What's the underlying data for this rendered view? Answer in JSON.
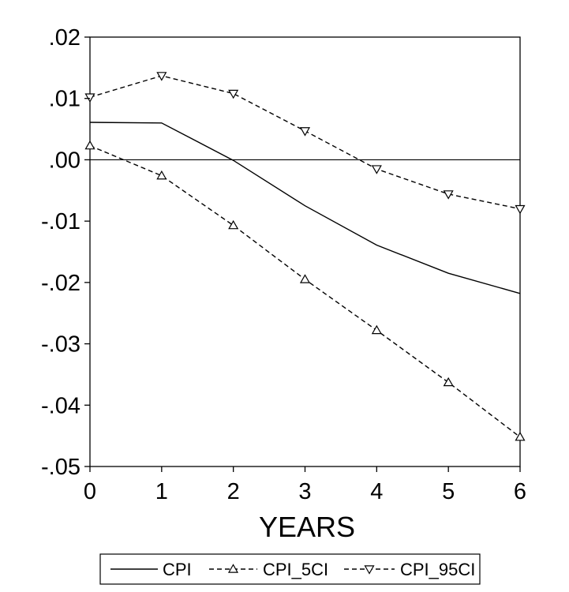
{
  "chart_data": {
    "type": "line",
    "title": "",
    "xlabel": "YEARS",
    "ylabel": "",
    "x": [
      0,
      1,
      2,
      3,
      4,
      5,
      6
    ],
    "xlim": [
      0,
      6
    ],
    "ylim": [
      -0.05,
      0.02
    ],
    "x_ticks": [
      0,
      1,
      2,
      3,
      4,
      5,
      6
    ],
    "x_tick_labels": [
      "0",
      "1",
      "2",
      "3",
      "4",
      "5",
      "6"
    ],
    "y_ticks": [
      0.02,
      0.01,
      0.0,
      -0.01,
      -0.02,
      -0.03,
      -0.04,
      -0.05
    ],
    "y_tick_labels": [
      ".02",
      ".01",
      ".00",
      "-.01",
      "-.02",
      "-.03",
      "-.04",
      "-.05"
    ],
    "zero_line": true,
    "grid": false,
    "legend_position": "bottom",
    "series": [
      {
        "name": "CPI",
        "style": "solid",
        "marker": "none",
        "values": [
          0.0061,
          0.006,
          -0.0001,
          -0.0075,
          -0.0139,
          -0.0185,
          -0.0218
        ]
      },
      {
        "name": "CPI_5CI",
        "style": "dashed",
        "marker": "triangle-up",
        "values": [
          0.0023,
          -0.0026,
          -0.0107,
          -0.0195,
          -0.0278,
          -0.0363,
          -0.0452
        ]
      },
      {
        "name": "CPI_95CI",
        "style": "dashed",
        "marker": "triangle-down",
        "values": [
          0.0102,
          0.0137,
          0.0108,
          0.0047,
          -0.0015,
          -0.0056,
          -0.008
        ]
      }
    ]
  },
  "colors": {
    "line": "#000000",
    "background": "#ffffff"
  }
}
